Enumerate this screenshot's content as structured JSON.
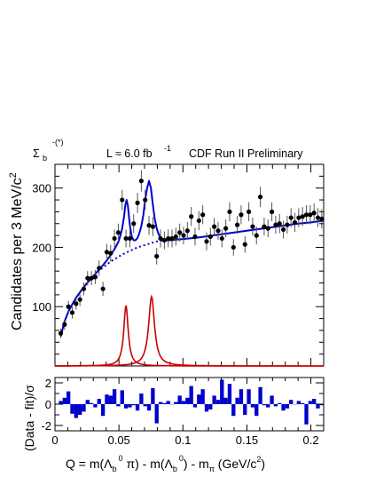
{
  "chart_data": [
    {
      "type": "scatter",
      "panel": "main",
      "header": {
        "left": "Σ_b^(*)",
        "left_main": "Σ",
        "left_sub": "b",
        "left_sup": "-(*)",
        "lumi_main": "L ≈ 6.0 fb",
        "lumi_sup": "-1",
        "right": "CDF Run II Preliminary"
      },
      "ylabel": "Candidates per 3 MeV/c²",
      "ylabel_main": "Candidates per 3 MeV/c",
      "ylabel_sup": "2",
      "xlim": [
        0,
        0.21
      ],
      "ylim": [
        0,
        340
      ],
      "yticks": [
        {
          "value": 100,
          "label": "100"
        },
        {
          "value": 200,
          "label": "200"
        },
        {
          "value": 300,
          "label": "300"
        }
      ],
      "series": [
        {
          "kind": "data_points",
          "color": "#000000",
          "x": [
            0.0045,
            0.0075,
            0.0105,
            0.0135,
            0.0165,
            0.0195,
            0.0225,
            0.0255,
            0.0285,
            0.0315,
            0.0345,
            0.0375,
            0.0405,
            0.0435,
            0.0465,
            0.0495,
            0.0525,
            0.0555,
            0.0585,
            0.0615,
            0.0645,
            0.0675,
            0.0705,
            0.0735,
            0.0765,
            0.0795,
            0.0825,
            0.0855,
            0.0885,
            0.0915,
            0.0945,
            0.0975,
            0.1005,
            0.1035,
            0.1065,
            0.1095,
            0.1125,
            0.1155,
            0.1185,
            0.1215,
            0.1245,
            0.1275,
            0.1305,
            0.1335,
            0.1365,
            0.1395,
            0.1425,
            0.1455,
            0.1485,
            0.1515,
            0.1545,
            0.1575,
            0.1605,
            0.1635,
            0.1665,
            0.1695,
            0.1725,
            0.1755,
            0.1785,
            0.1815,
            0.1845,
            0.1875,
            0.1905,
            0.1935,
            0.1965,
            0.1995,
            0.2025,
            0.2055,
            0.2085
          ],
          "y": [
            55,
            70,
            100,
            90,
            105,
            112,
            130,
            148,
            148,
            150,
            165,
            130,
            192,
            190,
            215,
            225,
            280,
            215,
            215,
            240,
            275,
            312,
            280,
            237,
            235,
            185,
            215,
            212,
            215,
            215,
            218,
            225,
            220,
            228,
            252,
            218,
            245,
            255,
            210,
            218,
            235,
            228,
            215,
            232,
            260,
            200,
            238,
            255,
            205,
            260,
            235,
            220,
            285,
            235,
            232,
            260,
            238,
            240,
            230,
            238,
            250,
            242,
            250,
            252,
            255,
            255,
            258,
            250,
            248
          ],
          "err": [
            8,
            9,
            10,
            10,
            10,
            11,
            11,
            12,
            12,
            12,
            13,
            12,
            14,
            14,
            15,
            15,
            17,
            15,
            15,
            16,
            17,
            18,
            17,
            16,
            16,
            14,
            15,
            15,
            15,
            15,
            15,
            15,
            15,
            15,
            16,
            15,
            16,
            16,
            15,
            15,
            15,
            15,
            15,
            15,
            16,
            14,
            15,
            16,
            14,
            16,
            15,
            15,
            17,
            15,
            15,
            16,
            15,
            16,
            15,
            15,
            16,
            16,
            16,
            16,
            16,
            16,
            16,
            16,
            16
          ]
        },
        {
          "kind": "total_fit",
          "color": "#0000cc",
          "x": [
            0.0045,
            0.0075,
            0.0105,
            0.0135,
            0.0165,
            0.0195,
            0.0225,
            0.0255,
            0.0285,
            0.0315,
            0.0345,
            0.0375,
            0.0405,
            0.0435,
            0.0465,
            0.0495,
            0.051,
            0.0525,
            0.054,
            0.055,
            0.056,
            0.057,
            0.0585,
            0.06,
            0.0615,
            0.063,
            0.0645,
            0.066,
            0.0675,
            0.069,
            0.0705,
            0.072,
            0.0735,
            0.075,
            0.0765,
            0.078,
            0.0795,
            0.081,
            0.0825,
            0.0855,
            0.09,
            0.095,
            0.1,
            0.11,
            0.12,
            0.13,
            0.14,
            0.15,
            0.16,
            0.17,
            0.18,
            0.19,
            0.2,
            0.21
          ],
          "y": [
            50,
            75,
            92,
            104,
            115,
            124,
            133,
            141,
            148,
            155,
            163,
            170,
            178,
            187,
            197,
            209,
            219,
            232,
            252,
            272,
            280,
            270,
            238,
            218,
            212,
            212,
            216,
            224,
            236,
            254,
            280,
            300,
            312,
            300,
            272,
            248,
            232,
            222,
            216,
            212,
            212,
            213,
            214,
            216,
            219,
            222,
            225,
            228,
            231,
            234,
            237,
            240,
            242,
            245
          ]
        },
        {
          "kind": "background",
          "color": "#0000cc",
          "style": "dotted",
          "x": [
            0.0045,
            0.0075,
            0.0105,
            0.0135,
            0.0165,
            0.0195,
            0.0225,
            0.0255,
            0.0285,
            0.0315,
            0.0345,
            0.0375,
            0.0405,
            0.0435,
            0.0465,
            0.0495,
            0.0525,
            0.0555,
            0.0585,
            0.0615,
            0.0645,
            0.0675,
            0.0705,
            0.0735,
            0.0765,
            0.0795,
            0.0825,
            0.0855,
            0.0885
          ],
          "y": [
            50,
            75,
            92,
            104,
            115,
            124,
            133,
            141,
            148,
            155,
            161,
            166,
            171,
            176,
            180,
            184,
            188,
            191,
            194,
            197,
            200,
            202,
            204,
            206,
            208,
            210,
            211,
            212,
            213
          ]
        },
        {
          "kind": "signal_peak_1",
          "color": "#cc0000",
          "center": 0.0555,
          "amplitude": 102,
          "width": 0.0021
        },
        {
          "kind": "signal_peak_2",
          "color": "#cc0000",
          "center": 0.0755,
          "amplitude": 117,
          "width": 0.0028
        }
      ]
    },
    {
      "type": "bar",
      "panel": "residual",
      "ylabel": "(Data - fit)/σ",
      "xlabel": "Q = m(Λb⁰ π) - m(Λb⁰) - mπ  (GeV/c²)",
      "xlabel_parts": {
        "a": "Q = m(Λ",
        "b_sub": "b",
        "b_sup": "0",
        "c": " π) - m(Λ",
        "d_sub": "b",
        "d_sup": "0",
        "e": ") - m",
        "f_sub": "π",
        "g": "  (GeV/c",
        "g_sup": "2",
        "h": ")"
      },
      "xlim": [
        0,
        0.21
      ],
      "ylim": [
        -2.5,
        2.5
      ],
      "color": "#0000cc",
      "xticks": [
        {
          "value": 0,
          "label": "0"
        },
        {
          "value": 0.05,
          "label": "0.05"
        },
        {
          "value": 0.1,
          "label": "0.1"
        },
        {
          "value": 0.15,
          "label": "0.15"
        },
        {
          "value": 0.2,
          "label": "0.2"
        }
      ],
      "yticks": [
        {
          "value": -2,
          "label": "-2"
        },
        {
          "value": 0,
          "label": "0"
        },
        {
          "value": 2,
          "label": "2"
        }
      ],
      "bin_width": 0.003,
      "x": [
        0.0045,
        0.0075,
        0.0105,
        0.0135,
        0.0165,
        0.0195,
        0.0225,
        0.0255,
        0.0285,
        0.0315,
        0.0345,
        0.0375,
        0.0405,
        0.0435,
        0.0465,
        0.0495,
        0.0525,
        0.0555,
        0.0585,
        0.0615,
        0.0645,
        0.0675,
        0.0705,
        0.0735,
        0.0765,
        0.0795,
        0.0825,
        0.0855,
        0.0885,
        0.0915,
        0.0945,
        0.0975,
        0.1005,
        0.1035,
        0.1065,
        0.1095,
        0.1125,
        0.1155,
        0.1185,
        0.1215,
        0.1245,
        0.1275,
        0.1305,
        0.1335,
        0.1365,
        0.1395,
        0.1425,
        0.1455,
        0.1485,
        0.1515,
        0.1545,
        0.1575,
        0.1605,
        0.1635,
        0.1665,
        0.1695,
        0.1725,
        0.1755,
        0.1785,
        0.1815,
        0.1845,
        0.1875,
        0.1905,
        0.1935,
        0.1965,
        0.1995,
        0.2025,
        0.2055,
        0.2085
      ],
      "values": [
        0.3,
        0.6,
        1.2,
        -0.9,
        -1.3,
        -1.0,
        -0.7,
        0.4,
        0.1,
        -0.3,
        0.5,
        -1.1,
        0.9,
        0.8,
        1.4,
        -0.2,
        1.3,
        -0.4,
        -0.3,
        -0.1,
        -0.6,
        1.0,
        -0.2,
        -0.6,
        1.5,
        -1.8,
        0.2,
        0.1,
        0.3,
        0.0,
        0.2,
        0.8,
        0.3,
        0.6,
        1.7,
        -0.3,
        0.9,
        1.4,
        -0.7,
        -0.5,
        0.8,
        0.4,
        2.3,
        0.6,
        1.9,
        -1.1,
        0.6,
        1.4,
        -1.0,
        1.4,
        -0.3,
        -1.1,
        1.6,
        -0.1,
        -0.3,
        0.8,
        -0.2,
        0.1,
        -0.6,
        -0.4,
        0.4,
        0.0,
        0.3,
        0.1,
        -1.9,
        0.3,
        0.5,
        -0.4,
        -0.1
      ]
    }
  ]
}
